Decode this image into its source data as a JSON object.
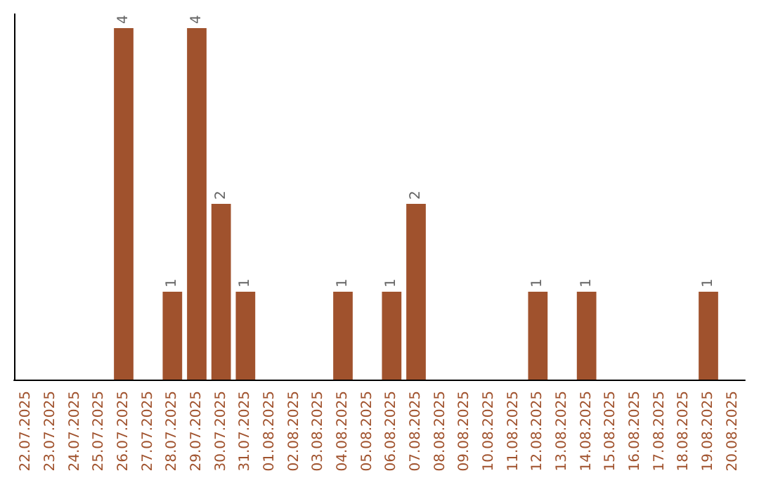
{
  "chart_data": {
    "type": "bar",
    "categories": [
      "22.07.2025",
      "23.07.2025",
      "24.07.2025",
      "25.07.2025",
      "26.07.2025",
      "27.07.2025",
      "28.07.2025",
      "29.07.2025",
      "30.07.2025",
      "31.07.2025",
      "01.08.2025",
      "02.08.2025",
      "03.08.2025",
      "04.08.2025",
      "05.08.2025",
      "06.08.2025",
      "07.08.2025",
      "08.08.2025",
      "09.08.2025",
      "10.08.2025",
      "11.08.2025",
      "12.08.2025",
      "13.08.2025",
      "14.08.2025",
      "15.08.2025",
      "16.08.2025",
      "17.08.2025",
      "18.08.2025",
      "19.08.2025",
      "20.08.2025"
    ],
    "values": [
      0,
      0,
      0,
      0,
      4,
      0,
      1,
      4,
      2,
      1,
      0,
      0,
      0,
      1,
      0,
      1,
      2,
      0,
      0,
      0,
      0,
      1,
      0,
      1,
      0,
      0,
      0,
      0,
      1,
      0
    ],
    "value_labels": [
      null,
      null,
      null,
      null,
      "4",
      null,
      "1",
      "4",
      "2",
      "1",
      null,
      null,
      null,
      "1",
      null,
      "1",
      "2",
      null,
      null,
      null,
      null,
      "1",
      null,
      "1",
      null,
      null,
      null,
      null,
      "1",
      null
    ],
    "color": "#a0522d",
    "ylim": [
      0,
      4.16
    ],
    "tick_labels": "x"
  }
}
